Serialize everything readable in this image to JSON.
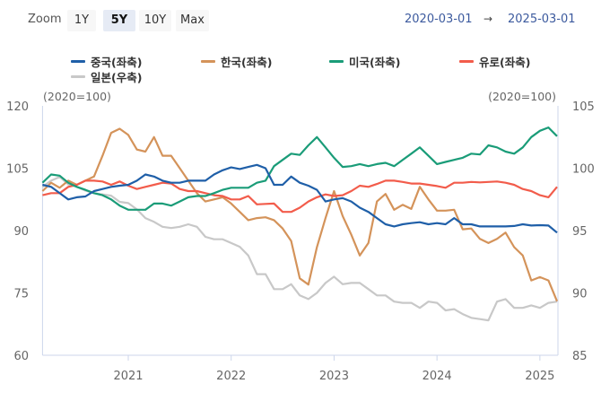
{
  "toolbar": {
    "zoom_label": "Zoom",
    "buttons": [
      "1Y",
      "5Y",
      "10Y",
      "Max"
    ],
    "selected": "5Y",
    "range_from": "2020-03-01",
    "range_arrow": "→",
    "range_to": "2025-03-01"
  },
  "chart_data": {
    "type": "line",
    "x_start": "2020-03",
    "x_end": "2025-03",
    "frequency": "monthly",
    "x_ticks": [
      "2021",
      "2022",
      "2023",
      "2024",
      "2025"
    ],
    "left_axis": {
      "label": "(2020=100)",
      "ylim": [
        60,
        120
      ],
      "ticks": [
        120,
        105,
        90,
        75,
        60
      ]
    },
    "right_axis": {
      "label": "(2020=100)",
      "ylim": [
        85,
        105
      ],
      "ticks": [
        105,
        100,
        95,
        90,
        85
      ]
    },
    "grid": false,
    "legend": "top",
    "series": [
      {
        "name": "중국(좌축)",
        "axis": "left",
        "color": "#1f5fa8",
        "values": [
          101,
          100.5,
          99,
          97.5,
          98,
          98.2,
          99.5,
          100,
          100.5,
          100.8,
          101,
          102,
          103.5,
          103,
          102,
          101.5,
          101.5,
          102,
          102,
          102,
          103.5,
          104.5,
          105.2,
          104.8,
          105.3,
          105.8,
          105,
          101,
          101,
          103,
          101.5,
          100.8,
          99.8,
          97,
          97.5,
          97.8,
          97,
          95.5,
          94.5,
          93,
          91.5,
          91,
          91.5,
          91.8,
          92,
          91.5,
          91.8,
          91.5,
          93,
          91.5,
          91.5,
          91,
          91,
          91,
          91,
          91.1,
          91.5,
          91.2,
          91.3,
          91.2,
          89.5
        ]
      },
      {
        "name": "한국(좌축)",
        "axis": "left",
        "color": "#d4935a",
        "values": [
          99.5,
          101.5,
          100.3,
          102,
          101,
          102,
          103,
          108,
          113.5,
          114.5,
          113,
          109.5,
          109,
          112.5,
          108,
          108,
          105,
          102,
          99,
          97,
          97.5,
          98,
          96.5,
          94.5,
          92.5,
          93,
          93.2,
          92.5,
          90.5,
          87.5,
          78.5,
          77,
          86,
          93,
          99.5,
          93.5,
          89,
          84,
          87,
          97,
          98.8,
          95,
          96.2,
          95.2,
          100.5,
          97.5,
          94.8,
          94.8,
          95,
          90.3,
          90.5,
          88,
          87,
          88,
          89.5,
          86,
          84,
          78,
          78.8,
          78,
          73
        ]
      },
      {
        "name": "미국(좌축)",
        "axis": "left",
        "color": "#1a9c78",
        "values": [
          101.5,
          103.5,
          103.2,
          101.5,
          100.5,
          99.8,
          99,
          98.5,
          97.5,
          96,
          95,
          95,
          95,
          96.5,
          96.5,
          96,
          97,
          98,
          98.3,
          98.3,
          99,
          99.8,
          100.3,
          100.3,
          100.3,
          101.5,
          102,
          105.5,
          107,
          108.5,
          108.2,
          110.5,
          112.5,
          110,
          107.5,
          105.3,
          105.5,
          106,
          105.5,
          106,
          106.3,
          105.5,
          107,
          108.5,
          110,
          108,
          106,
          106.5,
          107,
          107.5,
          108.5,
          108.3,
          110.5,
          110,
          109,
          108.5,
          110,
          112.5,
          114,
          114.8,
          112.7
        ]
      },
      {
        "name": "유로(좌축)",
        "axis": "left",
        "color": "#f25c4b",
        "values": [
          98.5,
          99,
          99,
          100.5,
          101,
          102,
          102,
          101.8,
          101,
          101.8,
          100.8,
          100,
          100.5,
          101,
          101.5,
          101.3,
          100,
          99.5,
          99.5,
          99,
          98.5,
          98.3,
          97.5,
          97.5,
          98.3,
          96.3,
          96.4,
          96.5,
          94.5,
          94.5,
          95.5,
          97,
          98,
          98.7,
          98.3,
          98.5,
          99.5,
          100.8,
          100.5,
          101.2,
          102,
          102,
          101.7,
          101.3,
          101.3,
          101,
          100.7,
          100.3,
          101.5,
          101.5,
          101.7,
          101.6,
          101.7,
          101.8,
          101.5,
          101,
          100,
          99.5,
          98.5,
          98,
          100.5
        ]
      },
      {
        "name": "일본(우축)",
        "axis": "right",
        "color": "#c8c8c8",
        "values": [
          98.5,
          99,
          99.3,
          98.7,
          98.5,
          98.2,
          98,
          97.9,
          97.8,
          97.3,
          97.2,
          96.7,
          96,
          95.7,
          95.3,
          95.2,
          95.3,
          95.5,
          95.3,
          94.5,
          94.3,
          94.3,
          94,
          93.7,
          93,
          91.5,
          91.5,
          90.3,
          90.3,
          90.7,
          89.8,
          89.5,
          90,
          90.8,
          91.3,
          90.7,
          90.8,
          90.8,
          90.3,
          89.8,
          89.8,
          89.3,
          89.2,
          89.2,
          88.8,
          89.3,
          89.2,
          88.6,
          88.7,
          88.3,
          88,
          87.9,
          87.8,
          89.3,
          89.5,
          88.8,
          88.8,
          89,
          88.8,
          89.2,
          89.3
        ]
      }
    ]
  }
}
